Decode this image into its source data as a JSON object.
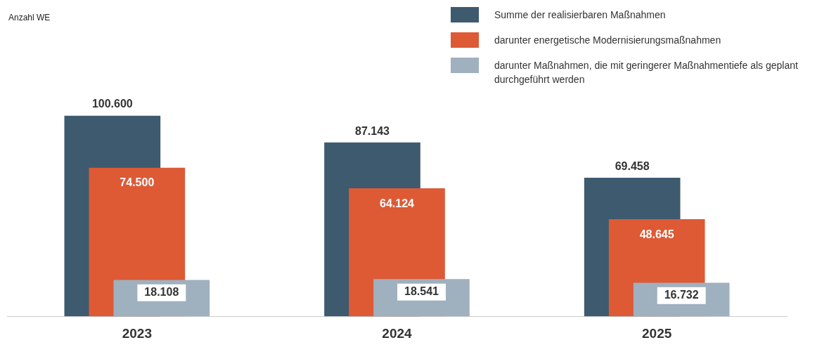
{
  "chart_data": {
    "type": "bar",
    "annotations": [
      "Anzahl WE"
    ],
    "categories": [
      "2023",
      "2024",
      "2025"
    ],
    "series": [
      {
        "name": "Summe der realisierbaren Maßnahmen",
        "color": "#3d5a6f",
        "values": [
          100600,
          87143,
          69458
        ],
        "value_labels": [
          "100.600",
          "87.143",
          "69.458"
        ]
      },
      {
        "name": "darunter energetische Modernisierungsmaßnahmen",
        "color": "#dd5a35",
        "values": [
          74500,
          64124,
          48645
        ],
        "value_labels": [
          "74.500",
          "64.124",
          "48.645"
        ]
      },
      {
        "name": "darunter Maßnahmen, die mit geringerer Maßnahmentiefe als geplant durchgeführt werden",
        "color": "#9fb0bf",
        "values": [
          18108,
          18541,
          16732
        ],
        "value_labels": [
          "18.108",
          "18.541",
          "16.732"
        ]
      }
    ],
    "legend": "top right",
    "grid": false
  }
}
